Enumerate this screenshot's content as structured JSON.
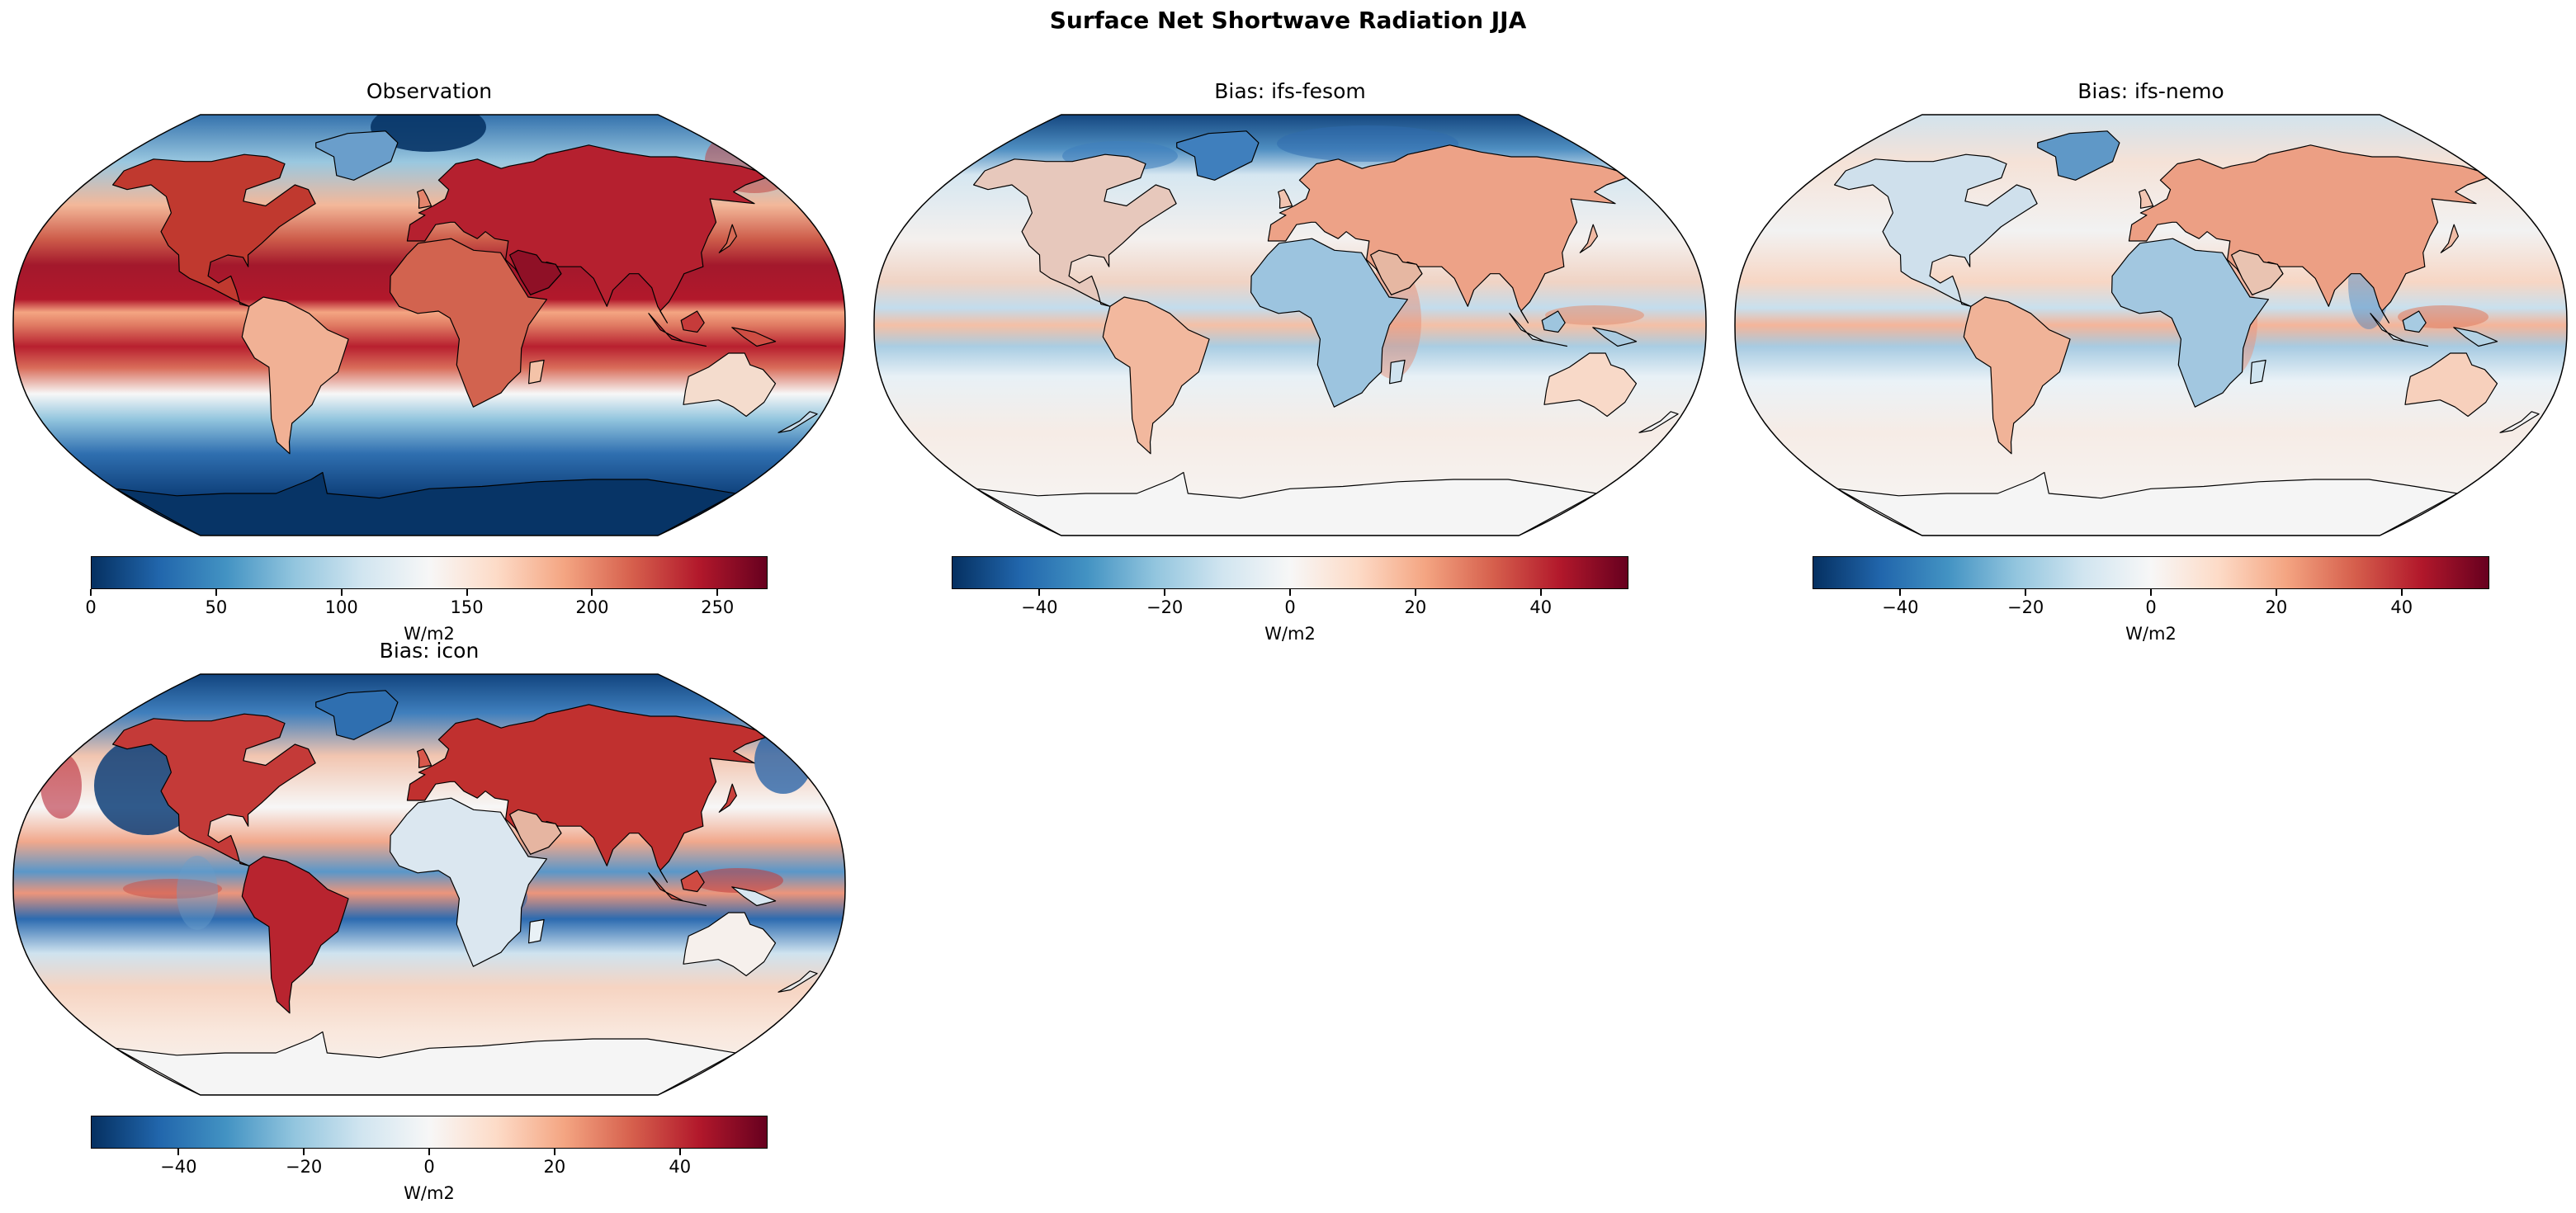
{
  "figure": {
    "title": "Surface Net Shortwave Radiation JJA"
  },
  "colormap": {
    "name": "RdBu_r",
    "stops": [
      "#053061",
      "#2166ac",
      "#4393c3",
      "#92c5de",
      "#d1e5f0",
      "#f7f7f7",
      "#fddbc7",
      "#f4a582",
      "#d6604d",
      "#b2182b",
      "#67001f"
    ]
  },
  "coastline_color": "#000000",
  "panels": [
    {
      "id": "observation",
      "title": "Observation",
      "units": "W/m2",
      "vmin": 0,
      "vmax": 270,
      "ticks": [
        0,
        50,
        100,
        150,
        200,
        250
      ],
      "tick_labels": [
        "0",
        "50",
        "100",
        "150",
        "200",
        "250"
      ]
    },
    {
      "id": "ifs-fesom",
      "title": "Bias: ifs-fesom",
      "units": "W/m2",
      "vmin": -54,
      "vmax": 54,
      "ticks": [
        -40,
        -20,
        0,
        20,
        40
      ],
      "tick_labels": [
        "−40",
        "−20",
        "0",
        "20",
        "40"
      ]
    },
    {
      "id": "ifs-nemo",
      "title": "Bias: ifs-nemo",
      "units": "W/m2",
      "vmin": -54,
      "vmax": 54,
      "ticks": [
        -40,
        -20,
        0,
        20,
        40
      ],
      "tick_labels": [
        "−40",
        "−20",
        "0",
        "20",
        "40"
      ]
    },
    {
      "id": "icon",
      "title": "Bias: icon",
      "units": "W/m2",
      "vmin": -54,
      "vmax": 54,
      "ticks": [
        -40,
        -20,
        0,
        20,
        40
      ],
      "tick_labels": [
        "−40",
        "−20",
        "0",
        "20",
        "40"
      ]
    }
  ]
}
